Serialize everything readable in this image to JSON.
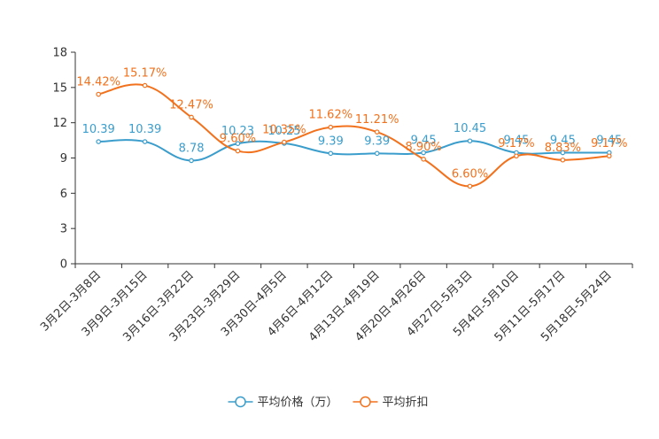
{
  "chart_data": {
    "type": "line",
    "title": "",
    "xlabel": "",
    "ylabel": "",
    "ylim": [
      0,
      18
    ],
    "yticks": [
      0,
      3,
      6,
      9,
      12,
      15,
      18
    ],
    "categories": [
      "3月2日-3月8日",
      "3月9日-3月15日",
      "3月16日-3月22日",
      "3月23日-3月29日",
      "3月30日-4月5日",
      "4月6日-4月12日",
      "4月13日-4月19日",
      "4月20日-4月26日",
      "4月27日-5月3日",
      "5月4日-5月10日",
      "5月11日-5月17日",
      "5月18日-5月24日"
    ],
    "series": [
      {
        "name": "平均价格（万）",
        "color": "#3a9dcc",
        "values": [
          10.39,
          10.39,
          8.78,
          10.23,
          10.25,
          9.39,
          9.39,
          9.45,
          10.45,
          9.45,
          9.45,
          9.45
        ],
        "labels": [
          "10.39",
          "10.39",
          "8.78",
          "10.23",
          "10.25",
          "9.39",
          "9.39",
          "9.45",
          "10.45",
          "9.45",
          "9.45",
          "9.45"
        ]
      },
      {
        "name": "平均折扣",
        "color": "#f2711c",
        "values": [
          14.42,
          15.17,
          12.47,
          9.6,
          10.35,
          11.62,
          11.21,
          8.9,
          6.6,
          9.17,
          8.83,
          9.17
        ],
        "labels": [
          "14.42%",
          "15.17%",
          "12.47%",
          "9.60%",
          "10.35%",
          "11.62%",
          "11.21%",
          "8.90%",
          "6.60%",
          "9.17%",
          "8.83%",
          "9.17%"
        ]
      }
    ],
    "grid": false,
    "legend": "bottom-center"
  }
}
